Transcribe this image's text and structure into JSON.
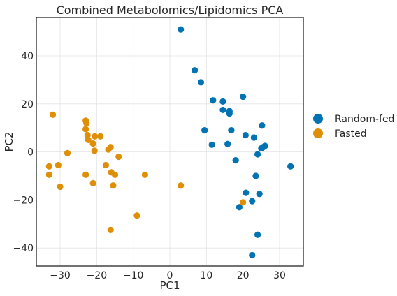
{
  "chart_data": {
    "type": "scatter",
    "title": "Combined Metabolomics/Lipidomics PCA",
    "xlabel": "PC1",
    "ylabel": "PC2",
    "xlim": [
      -36.5,
      36.5
    ],
    "ylim": [
      -47.5,
      56
    ],
    "xticks": [
      -30,
      -20,
      -10,
      0,
      10,
      20,
      30
    ],
    "yticks": [
      -40,
      -20,
      0,
      20,
      40
    ],
    "xtick_labels": [
      "−30",
      "−20",
      "−10",
      "0",
      "10",
      "20",
      "30"
    ],
    "ytick_labels": [
      "−40",
      "−20",
      "0",
      "20",
      "40"
    ],
    "grid": true,
    "legend_position": "right",
    "series": [
      {
        "name": "Random-fed",
        "color": "#0173b2",
        "points": [
          [
            3,
            51
          ],
          [
            6.8,
            34
          ],
          [
            8.5,
            29
          ],
          [
            11.8,
            21.5
          ],
          [
            14.5,
            21
          ],
          [
            14.5,
            17.5
          ],
          [
            16.3,
            17
          ],
          [
            16.3,
            16
          ],
          [
            20,
            23
          ],
          [
            9.5,
            9
          ],
          [
            16.8,
            9
          ],
          [
            25.2,
            11
          ],
          [
            11.5,
            3
          ],
          [
            15.8,
            3.3
          ],
          [
            20.7,
            7
          ],
          [
            23,
            6
          ],
          [
            24,
            -1
          ],
          [
            25,
            1.5
          ],
          [
            25.5,
            2
          ],
          [
            26,
            2.5
          ],
          [
            18,
            -3.5
          ],
          [
            33,
            -6
          ],
          [
            23.5,
            -10
          ],
          [
            20.8,
            -17
          ],
          [
            24.5,
            -17.5
          ],
          [
            22.5,
            -20.5
          ],
          [
            19,
            -23
          ],
          [
            24,
            -34.5
          ],
          [
            22.5,
            -43
          ]
        ]
      },
      {
        "name": "Fasted",
        "color": "#de8f05",
        "points": [
          [
            -32,
            15.5
          ],
          [
            -23,
            13
          ],
          [
            -22.8,
            12
          ],
          [
            -23,
            9.5
          ],
          [
            -22.5,
            7
          ],
          [
            -22.3,
            5
          ],
          [
            -20.5,
            6.5
          ],
          [
            -19,
            6.5
          ],
          [
            -21,
            3.5
          ],
          [
            -20.6,
            0.5
          ],
          [
            -16.8,
            1
          ],
          [
            -16.2,
            2
          ],
          [
            -28,
            -0.5
          ],
          [
            -14,
            -2
          ],
          [
            -33,
            -6
          ],
          [
            -30.5,
            -5.5
          ],
          [
            -17.5,
            -5.5
          ],
          [
            -33,
            -9.5
          ],
          [
            -23,
            -9.5
          ],
          [
            -16,
            -8.5
          ],
          [
            -15,
            -9.5
          ],
          [
            -6.8,
            -9.5
          ],
          [
            -30,
            -14.5
          ],
          [
            -21,
            -13
          ],
          [
            -15.5,
            -14
          ],
          [
            3,
            -14
          ],
          [
            -9,
            -26.5
          ],
          [
            20,
            -21
          ],
          [
            -16.2,
            -32.5
          ]
        ]
      }
    ]
  }
}
